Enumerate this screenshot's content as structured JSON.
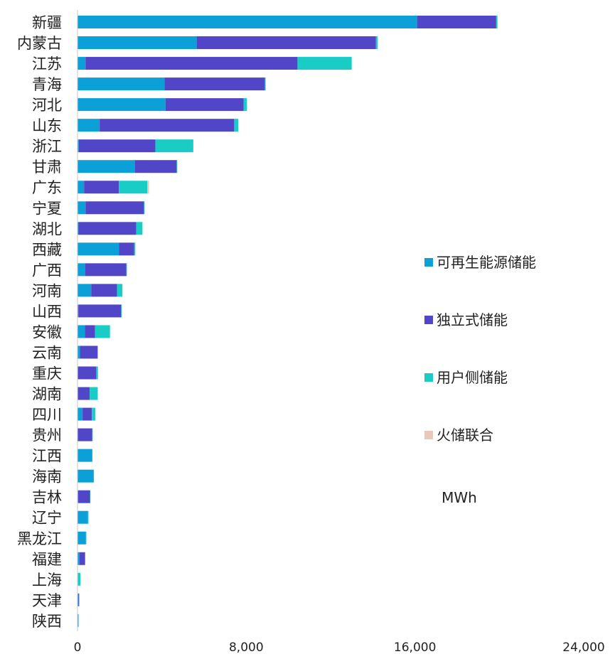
{
  "colors": {
    "renewable": "#0BA1D8",
    "independent": "#5146C8",
    "user_side": "#19CCC6",
    "thermal": "#EBC7B8",
    "axis": "#C8C8C8",
    "text": "#222222"
  },
  "legend": {
    "items": [
      "可再生能源储能",
      "独立式储能",
      "用户侧储能",
      "火储联合"
    ],
    "unit": "MWh"
  },
  "chart_data": {
    "type": "bar",
    "orientation": "horizontal",
    "stacked": true,
    "categories": [
      "新疆",
      "内蒙古",
      "江苏",
      "青海",
      "河北",
      "山东",
      "浙江",
      "甘肃",
      "广东",
      "宁夏",
      "湖北",
      "西藏",
      "广西",
      "河南",
      "山西",
      "安徽",
      "云南",
      "重庆",
      "湖南",
      "四川",
      "贵州",
      "江西",
      "海南",
      "吉林",
      "辽宁",
      "黑龙江",
      "福建",
      "上海",
      "天津",
      "陕西"
    ],
    "series": [
      {
        "name": "可再生能源储能",
        "values": [
          16100,
          5650,
          380,
          4120,
          4170,
          1050,
          60,
          2730,
          310,
          380,
          50,
          1960,
          370,
          650,
          40,
          350,
          120,
          20,
          20,
          240,
          10,
          690,
          760,
          30,
          500,
          400,
          100,
          20,
          50,
          50
        ]
      },
      {
        "name": "独立式储能",
        "values": [
          3750,
          8500,
          10050,
          4760,
          3700,
          6380,
          3630,
          1970,
          1650,
          2770,
          2730,
          720,
          1950,
          1220,
          2030,
          480,
          830,
          870,
          560,
          440,
          690,
          0,
          0,
          560,
          0,
          0,
          260,
          0,
          30,
          0
        ]
      },
      {
        "name": "用户侧储能",
        "values": [
          60,
          80,
          2570,
          40,
          160,
          190,
          1800,
          30,
          1350,
          30,
          300,
          60,
          20,
          260,
          30,
          710,
          20,
          80,
          380,
          170,
          20,
          20,
          20,
          20,
          20,
          20,
          0,
          120,
          0,
          0
        ]
      },
      {
        "name": "火储联合",
        "values": [
          0,
          0,
          0,
          0,
          0,
          0,
          0,
          0,
          80,
          0,
          0,
          0,
          0,
          0,
          0,
          0,
          0,
          0,
          0,
          0,
          0,
          0,
          0,
          0,
          0,
          0,
          0,
          0,
          0,
          0
        ]
      }
    ],
    "x_ticks": [
      0,
      8000,
      16000,
      24000
    ],
    "x_tick_labels": [
      "0",
      "8,000",
      "16,000",
      "24,000"
    ],
    "xlim": [
      0,
      24000
    ],
    "grid": false,
    "legend_position": "right"
  }
}
